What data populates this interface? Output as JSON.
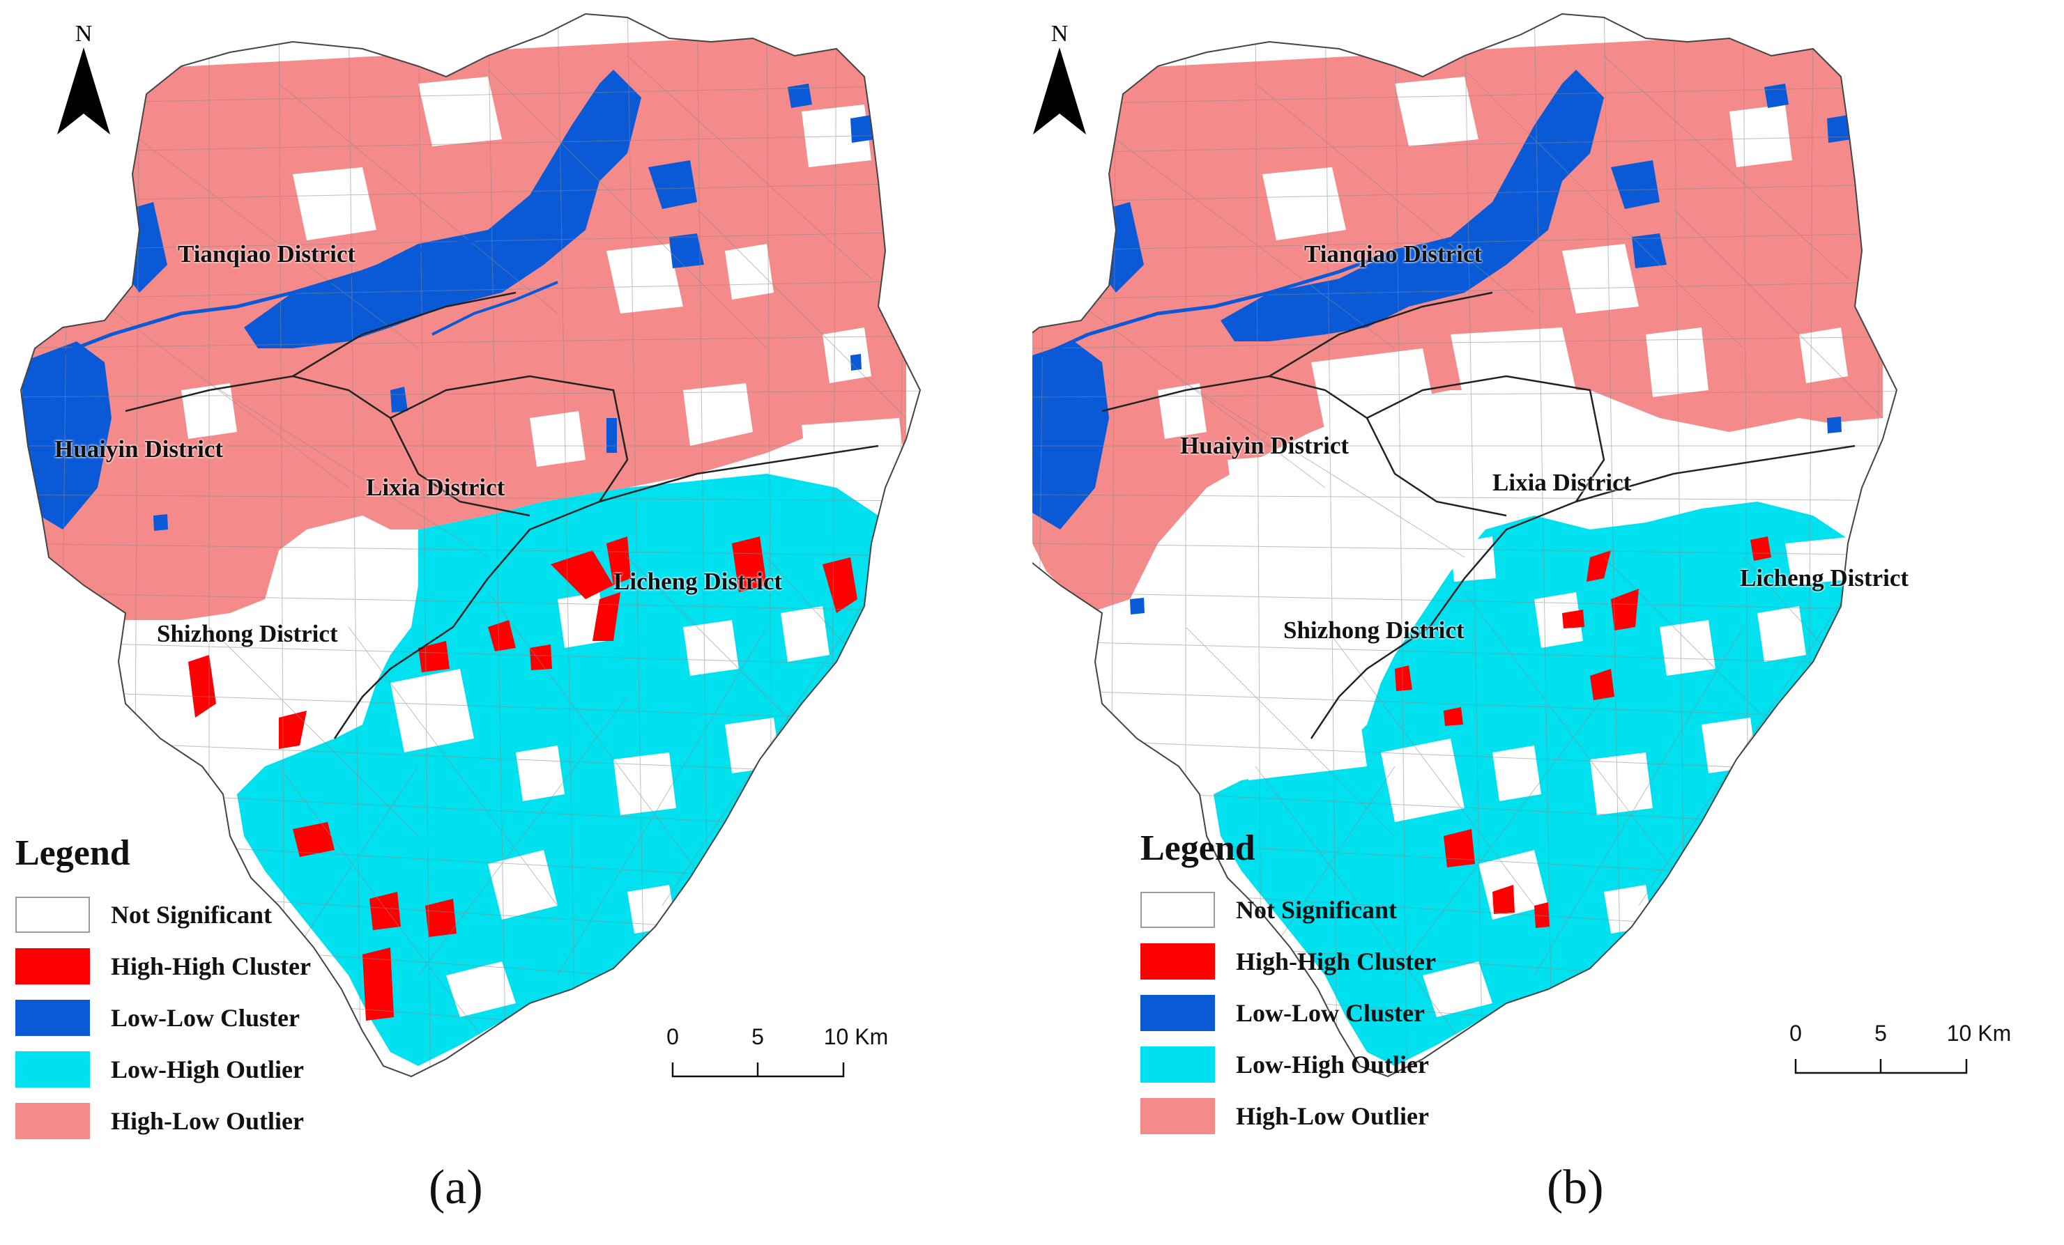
{
  "colors": {
    "not_significant": "#ffffff",
    "high_high": "#ff0000",
    "low_low": "#0a5ad8",
    "low_high": "#00e1f0",
    "high_low": "#f58a8a",
    "boundary": "#888888"
  },
  "north_arrow": {
    "label": "N",
    "icon": "north-arrow-icon"
  },
  "legend": {
    "title": "Legend",
    "items": [
      {
        "label": "Not Significant",
        "color_key": "not_significant"
      },
      {
        "label": "High-High Cluster",
        "color_key": "high_high"
      },
      {
        "label": "Low-Low Cluster",
        "color_key": "low_low"
      },
      {
        "label": "Low-High Outlier",
        "color_key": "low_high"
      },
      {
        "label": "High-Low Outlier",
        "color_key": "high_low"
      }
    ]
  },
  "scale_bar": {
    "ticks": [
      "0",
      "5",
      "10 Km"
    ]
  },
  "panels": [
    {
      "caption": "(a)",
      "districts": {
        "tianqiao": "Tianqiao District",
        "huaiyin": "Huaiyin District",
        "lixia": "Lixia District",
        "licheng": "Licheng District",
        "shizhong": "Shizhong District"
      }
    },
    {
      "caption": "(b)",
      "districts": {
        "tianqiao": "Tianqiao District",
        "huaiyin": "Huaiyin District",
        "lixia": "Lixia District",
        "licheng": "Licheng District",
        "shizhong": "Shizhong District"
      }
    }
  ]
}
